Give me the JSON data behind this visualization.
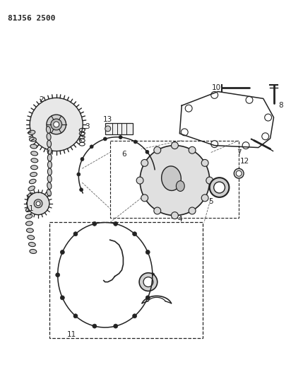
{
  "title": "81J56 2500",
  "bg_color": "#ffffff",
  "line_color": "#222222",
  "label_color": "#111111",
  "fig_width": 4.12,
  "fig_height": 5.33,
  "dpi": 100
}
